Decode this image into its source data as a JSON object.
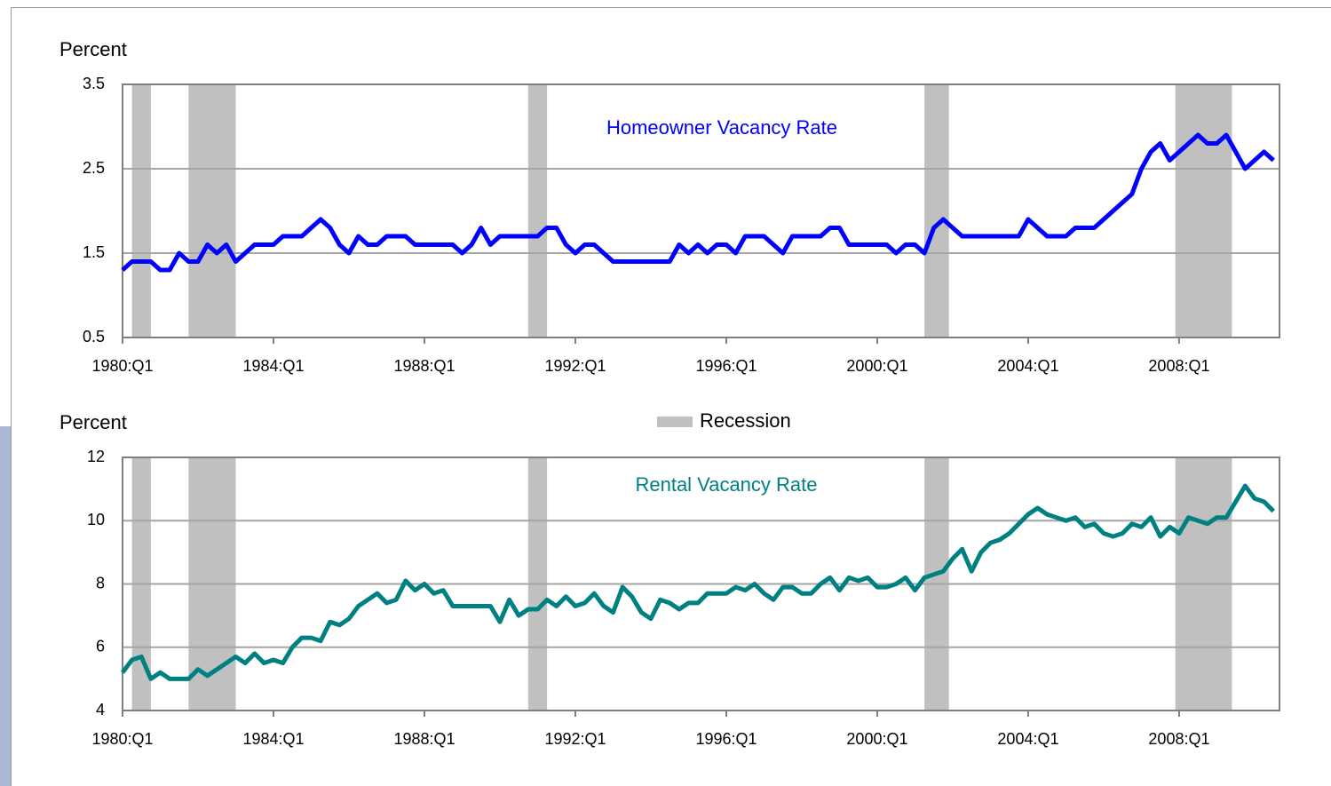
{
  "recession": {
    "label": "Recession",
    "color": "#c0c0c0",
    "spans": [
      [
        1980.25,
        1980.75
      ],
      [
        1981.75,
        1983.0
      ],
      [
        1990.75,
        1991.25
      ],
      [
        2001.25,
        2001.9
      ],
      [
        2007.9,
        2009.4
      ]
    ]
  },
  "chart_data": [
    {
      "type": "line",
      "y_label": "Percent",
      "grid": true,
      "x": [
        1980,
        1980.25,
        1980.5,
        1980.75,
        1981,
        1981.25,
        1981.5,
        1981.75,
        1982,
        1982.25,
        1982.5,
        1982.75,
        1983,
        1983.25,
        1983.5,
        1983.75,
        1984,
        1984.25,
        1984.5,
        1984.75,
        1985,
        1985.25,
        1985.5,
        1985.75,
        1986,
        1986.25,
        1986.5,
        1986.75,
        1987,
        1987.25,
        1987.5,
        1987.75,
        1988,
        1988.25,
        1988.5,
        1988.75,
        1989,
        1989.25,
        1989.5,
        1989.75,
        1990,
        1990.25,
        1990.5,
        1990.75,
        1991,
        1991.25,
        1991.5,
        1991.75,
        1992,
        1992.25,
        1992.5,
        1992.75,
        1993,
        1993.25,
        1993.5,
        1993.75,
        1994,
        1994.25,
        1994.5,
        1994.75,
        1995,
        1995.25,
        1995.5,
        1995.75,
        1996,
        1996.25,
        1996.5,
        1996.75,
        1997,
        1997.25,
        1997.5,
        1997.75,
        1998,
        1998.25,
        1998.5,
        1998.75,
        1999,
        1999.25,
        1999.5,
        1999.75,
        2000,
        2000.25,
        2000.5,
        2000.75,
        2001,
        2001.25,
        2001.5,
        2001.75,
        2002,
        2002.25,
        2002.5,
        2002.75,
        2003,
        2003.25,
        2003.5,
        2003.75,
        2004,
        2004.25,
        2004.5,
        2004.75,
        2005,
        2005.25,
        2005.5,
        2005.75,
        2006,
        2006.25,
        2006.5,
        2006.75,
        2007,
        2007.25,
        2007.5,
        2007.75,
        2008,
        2008.25,
        2008.5,
        2008.75,
        2009,
        2009.25,
        2009.5,
        2009.75,
        2010,
        2010.25,
        2010.5
      ],
      "series": [
        {
          "name": "Homeowner Vacancy Rate",
          "color": "#0000ff",
          "values": [
            1.3,
            1.4,
            1.4,
            1.4,
            1.3,
            1.3,
            1.5,
            1.4,
            1.4,
            1.6,
            1.5,
            1.6,
            1.4,
            1.5,
            1.6,
            1.6,
            1.6,
            1.7,
            1.7,
            1.7,
            1.8,
            1.9,
            1.8,
            1.6,
            1.5,
            1.7,
            1.6,
            1.6,
            1.7,
            1.7,
            1.7,
            1.6,
            1.6,
            1.6,
            1.6,
            1.6,
            1.5,
            1.6,
            1.8,
            1.6,
            1.7,
            1.7,
            1.7,
            1.7,
            1.7,
            1.8,
            1.8,
            1.6,
            1.5,
            1.6,
            1.6,
            1.5,
            1.4,
            1.4,
            1.4,
            1.4,
            1.4,
            1.4,
            1.4,
            1.6,
            1.5,
            1.6,
            1.5,
            1.6,
            1.6,
            1.5,
            1.7,
            1.7,
            1.7,
            1.6,
            1.5,
            1.7,
            1.7,
            1.7,
            1.7,
            1.8,
            1.8,
            1.6,
            1.6,
            1.6,
            1.6,
            1.6,
            1.5,
            1.6,
            1.6,
            1.5,
            1.8,
            1.9,
            1.8,
            1.7,
            1.7,
            1.7,
            1.7,
            1.7,
            1.7,
            1.7,
            1.9,
            1.8,
            1.7,
            1.7,
            1.7,
            1.8,
            1.8,
            1.8,
            1.9,
            2.0,
            2.1,
            2.2,
            2.5,
            2.7,
            2.8,
            2.6,
            2.7,
            2.8,
            2.9,
            2.8,
            2.8,
            2.9,
            2.7,
            2.5,
            2.6,
            2.7,
            2.6
          ]
        }
      ],
      "xlim": [
        1980,
        2010.66
      ],
      "ylim": [
        0.5,
        3.5
      ],
      "yticks": [
        0.5,
        1.5,
        2.5,
        3.5
      ],
      "xticks": [
        {
          "value": 1980,
          "label": "1980:Q1"
        },
        {
          "value": 1984,
          "label": "1984:Q1"
        },
        {
          "value": 1988,
          "label": "1988:Q1"
        },
        {
          "value": 1992,
          "label": "1992:Q1"
        },
        {
          "value": 1996,
          "label": "1996:Q1"
        },
        {
          "value": 2000,
          "label": "2000:Q1"
        },
        {
          "value": 2004,
          "label": "2004:Q1"
        },
        {
          "value": 2008,
          "label": "2008:Q1"
        }
      ]
    },
    {
      "type": "line",
      "y_label": "Percent",
      "grid": true,
      "x": [
        1980,
        1980.25,
        1980.5,
        1980.75,
        1981,
        1981.25,
        1981.5,
        1981.75,
        1982,
        1982.25,
        1982.5,
        1982.75,
        1983,
        1983.25,
        1983.5,
        1983.75,
        1984,
        1984.25,
        1984.5,
        1984.75,
        1985,
        1985.25,
        1985.5,
        1985.75,
        1986,
        1986.25,
        1986.5,
        1986.75,
        1987,
        1987.25,
        1987.5,
        1987.75,
        1988,
        1988.25,
        1988.5,
        1988.75,
        1989,
        1989.25,
        1989.5,
        1989.75,
        1990,
        1990.25,
        1990.5,
        1990.75,
        1991,
        1991.25,
        1991.5,
        1991.75,
        1992,
        1992.25,
        1992.5,
        1992.75,
        1993,
        1993.25,
        1993.5,
        1993.75,
        1994,
        1994.25,
        1994.5,
        1994.75,
        1995,
        1995.25,
        1995.5,
        1995.75,
        1996,
        1996.25,
        1996.5,
        1996.75,
        1997,
        1997.25,
        1997.5,
        1997.75,
        1998,
        1998.25,
        1998.5,
        1998.75,
        1999,
        1999.25,
        1999.5,
        1999.75,
        2000,
        2000.25,
        2000.5,
        2000.75,
        2001,
        2001.25,
        2001.5,
        2001.75,
        2002,
        2002.25,
        2002.5,
        2002.75,
        2003,
        2003.25,
        2003.5,
        2003.75,
        2004,
        2004.25,
        2004.5,
        2004.75,
        2005,
        2005.25,
        2005.5,
        2005.75,
        2006,
        2006.25,
        2006.5,
        2006.75,
        2007,
        2007.25,
        2007.5,
        2007.75,
        2008,
        2008.25,
        2008.5,
        2008.75,
        2009,
        2009.25,
        2009.5,
        2009.75,
        2010,
        2010.25,
        2010.5
      ],
      "series": [
        {
          "name": "Rental Vacancy Rate",
          "color": "#008080",
          "values": [
            5.2,
            5.6,
            5.7,
            5.0,
            5.2,
            5.0,
            5.0,
            5.0,
            5.3,
            5.1,
            5.3,
            5.5,
            5.7,
            5.5,
            5.8,
            5.5,
            5.6,
            5.5,
            6.0,
            6.3,
            6.3,
            6.2,
            6.8,
            6.7,
            6.9,
            7.3,
            7.5,
            7.7,
            7.4,
            7.5,
            8.1,
            7.8,
            8.0,
            7.7,
            7.8,
            7.3,
            7.3,
            7.3,
            7.3,
            7.3,
            6.8,
            7.5,
            7.0,
            7.2,
            7.2,
            7.5,
            7.3,
            7.6,
            7.3,
            7.4,
            7.7,
            7.3,
            7.1,
            7.9,
            7.6,
            7.1,
            6.9,
            7.5,
            7.4,
            7.2,
            7.4,
            7.4,
            7.7,
            7.7,
            7.7,
            7.9,
            7.8,
            8.0,
            7.7,
            7.5,
            7.9,
            7.9,
            7.7,
            7.7,
            8.0,
            8.2,
            7.8,
            8.2,
            8.1,
            8.2,
            7.9,
            7.9,
            8.0,
            8.2,
            7.8,
            8.2,
            8.3,
            8.4,
            8.8,
            9.1,
            8.4,
            9.0,
            9.3,
            9.4,
            9.6,
            9.9,
            10.2,
            10.4,
            10.2,
            10.1,
            10.0,
            10.1,
            9.8,
            9.9,
            9.6,
            9.5,
            9.6,
            9.9,
            9.8,
            10.1,
            9.5,
            9.8,
            9.6,
            10.1,
            10.0,
            9.9,
            10.1,
            10.1,
            10.6,
            11.1,
            10.7,
            10.6,
            10.3
          ]
        }
      ],
      "xlim": [
        1980,
        2010.66
      ],
      "ylim": [
        4,
        12
      ],
      "yticks": [
        4,
        6,
        8,
        10,
        12
      ],
      "xticks": [
        {
          "value": 1980,
          "label": "1980:Q1"
        },
        {
          "value": 1984,
          "label": "1984:Q1"
        },
        {
          "value": 1988,
          "label": "1988:Q1"
        },
        {
          "value": 1992,
          "label": "1992:Q1"
        },
        {
          "value": 1996,
          "label": "1996:Q1"
        },
        {
          "value": 2000,
          "label": "2000:Q1"
        },
        {
          "value": 2004,
          "label": "2004:Q1"
        },
        {
          "value": 2008,
          "label": "2008:Q1"
        }
      ]
    }
  ]
}
